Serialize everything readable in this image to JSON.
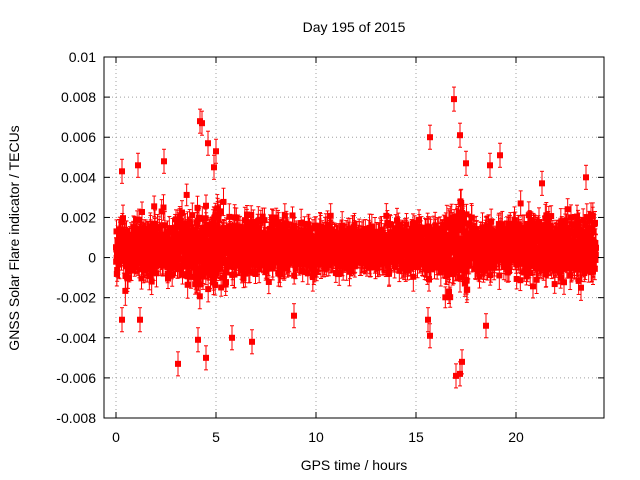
{
  "chart_data": {
    "type": "scatter",
    "title": "Day 195 of 2015",
    "xlabel": "GPS time / hours",
    "ylabel": "GNSS Solar Flare indicator / TECUs",
    "xlim": [
      -0.6,
      24.4
    ],
    "ylim": [
      -0.008,
      0.01
    ],
    "xticks": [
      0,
      5,
      10,
      15,
      20
    ],
    "xtick_labels": [
      "0",
      "5",
      "10",
      "15",
      "20"
    ],
    "yticks": [
      -0.008,
      -0.006,
      -0.004,
      -0.002,
      0,
      0.002,
      0.004,
      0.006,
      0.008,
      0.01
    ],
    "ytick_labels": [
      "-0.008",
      "-0.006",
      "-0.004",
      "-0.002",
      "0",
      "0.002",
      "0.004",
      "0.006",
      "0.008",
      "0.01"
    ],
    "grid": true,
    "series": [
      {
        "name": "solar flare indicator",
        "color": "#ff0000",
        "marker": "square",
        "errorbars": true,
        "typical_error": 0.0006,
        "sampling_interval_hours": 0.0083333,
        "dense_band": {
          "x_start": 0.0,
          "x_end": 24.0,
          "typical_low": -0.0015,
          "typical_high": 0.0025
        },
        "notable_points": [
          {
            "x": 3.1,
            "y": -0.0053
          },
          {
            "x": 4.2,
            "y": 0.0068
          },
          {
            "x": 4.3,
            "y": 0.0067
          },
          {
            "x": 4.5,
            "y": -0.005
          },
          {
            "x": 4.1,
            "y": -0.0041
          },
          {
            "x": 5.0,
            "y": 0.0053
          },
          {
            "x": 4.9,
            "y": 0.0045
          },
          {
            "x": 4.6,
            "y": 0.0057
          },
          {
            "x": 6.8,
            "y": -0.0042
          },
          {
            "x": 2.4,
            "y": 0.0048
          },
          {
            "x": 15.7,
            "y": 0.006
          },
          {
            "x": 15.6,
            "y": -0.0031
          },
          {
            "x": 15.7,
            "y": -0.0039
          },
          {
            "x": 16.9,
            "y": 0.0079
          },
          {
            "x": 17.2,
            "y": 0.0061
          },
          {
            "x": 17.0,
            "y": -0.0059
          },
          {
            "x": 17.3,
            "y": -0.0052
          },
          {
            "x": 17.2,
            "y": -0.0058
          },
          {
            "x": 17.5,
            "y": 0.0047
          },
          {
            "x": 18.5,
            "y": -0.0034
          },
          {
            "x": 19.2,
            "y": 0.0051
          },
          {
            "x": 18.7,
            "y": 0.0046
          },
          {
            "x": 0.3,
            "y": 0.0043
          },
          {
            "x": 1.1,
            "y": 0.0046
          },
          {
            "x": 0.3,
            "y": -0.0031
          },
          {
            "x": 1.2,
            "y": -0.0031
          },
          {
            "x": 5.8,
            "y": -0.004
          },
          {
            "x": 8.9,
            "y": -0.0029
          },
          {
            "x": 21.3,
            "y": 0.0037
          },
          {
            "x": 23.5,
            "y": 0.004
          }
        ]
      }
    ]
  }
}
